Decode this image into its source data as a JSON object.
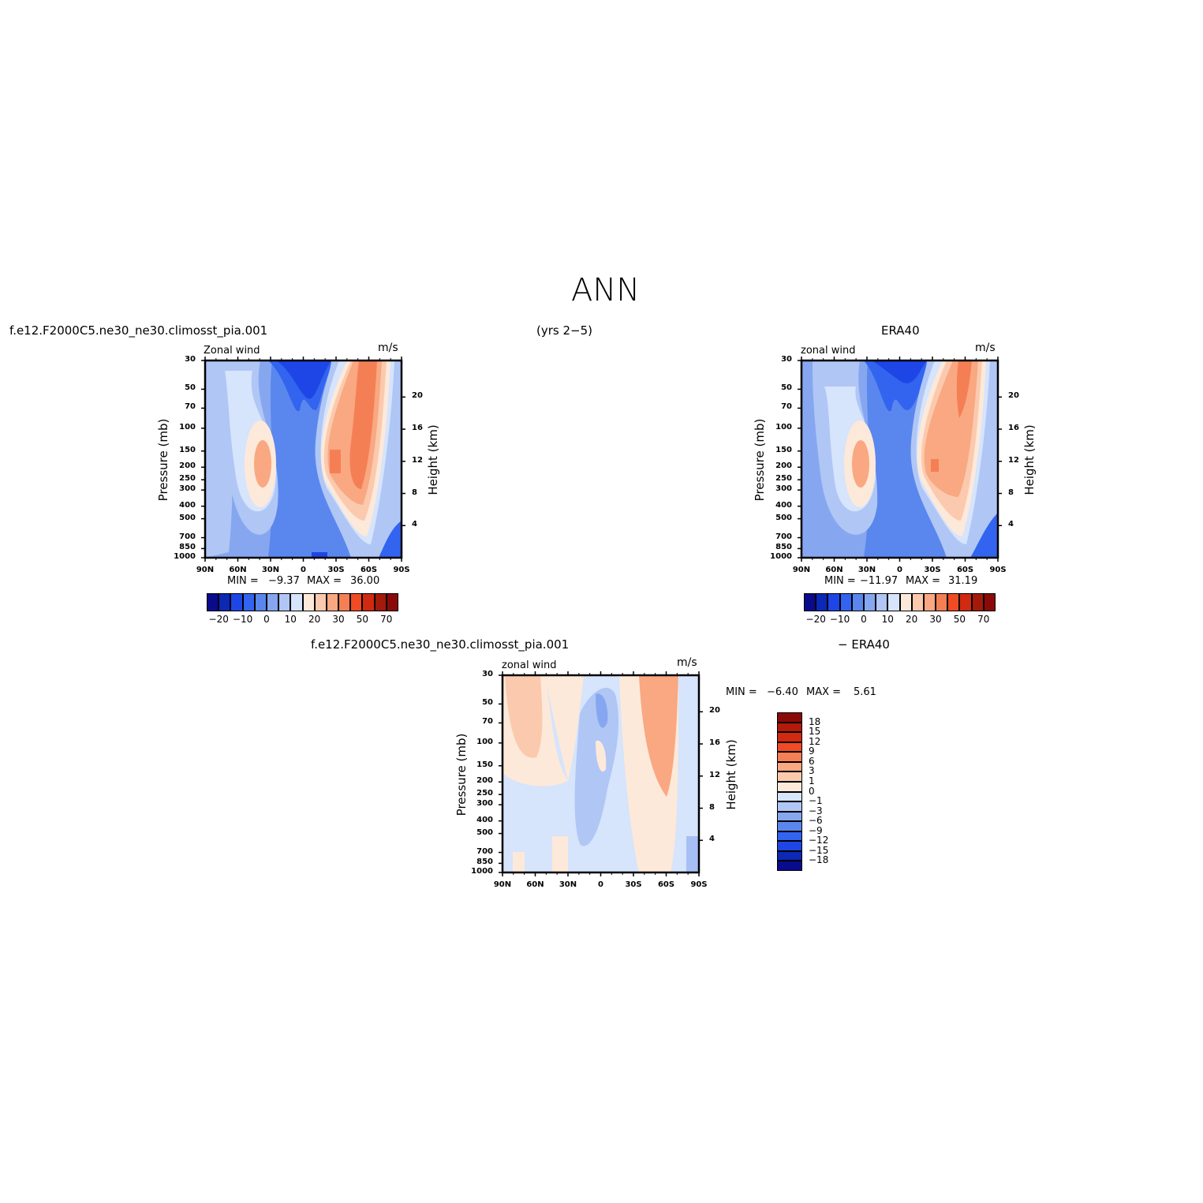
{
  "figure": {
    "title": "ANN",
    "case_name": "f.e12.F2000C5.ne30_ne30.climosst_pia.001",
    "years": "(yrs 2−5)",
    "obs_name": "ERA40",
    "diff_case_name": "f.e12.F2000C5.ne30_ne30.climosst_pia.001",
    "diff_obs_name": "− ERA40"
  },
  "colors": {
    "full_palette": [
      "#0a0a8c",
      "#0c28b4",
      "#1e46e6",
      "#3264f0",
      "#5a87ee",
      "#86a7f0",
      "#b0c6f5",
      "#d6e4fc",
      "#fde9d9",
      "#fbcaae",
      "#f9a882",
      "#f57f55",
      "#f04b24",
      "#d02a10",
      "#a31a0a",
      "#8a0a0a"
    ],
    "diff_palette": [
      "#8a0a0a",
      "#b41a0a",
      "#d02a10",
      "#f04b24",
      "#f57f55",
      "#f9a882",
      "#fbcaae",
      "#fde9d9",
      "#d6e4fc",
      "#b0c6f5",
      "#86a7f0",
      "#5a87ee",
      "#3264f0",
      "#1e46e6",
      "#0c28b4",
      "#0a0a8c"
    ]
  },
  "chart_data": [
    {
      "type": "heatmap",
      "panel": "model",
      "title": "Zonal wind",
      "units": "m/s",
      "ylabel_left": "Pressure (mb)",
      "ylabel_right": "Height (km)",
      "x_ticks": [
        "90N",
        "60N",
        "30N",
        "0",
        "30S",
        "60S",
        "90S"
      ],
      "y_ticks_pressure": [
        "30",
        "50",
        "70",
        "100",
        "150",
        "200",
        "250",
        "300",
        "400",
        "500",
        "700",
        "850",
        "1000"
      ],
      "y_ticks_height": [
        "20",
        "16",
        "12",
        "8",
        "4"
      ],
      "ylim_pressure": [
        1000,
        30
      ],
      "min_label": "MIN =",
      "min_value": "−9.37",
      "max_label": "MAX =",
      "max_value": "36.00",
      "colorbar_labels": [
        "−20",
        "−10",
        "0",
        "10",
        "20",
        "30",
        "50",
        "70"
      ]
    },
    {
      "type": "heatmap",
      "panel": "obs",
      "title": "zonal wind",
      "units": "m/s",
      "ylabel_left": "Pressure (mb)",
      "ylabel_right": "Height (km)",
      "x_ticks": [
        "90N",
        "60N",
        "30N",
        "0",
        "30S",
        "60S",
        "90S"
      ],
      "y_ticks_pressure": [
        "30",
        "50",
        "70",
        "100",
        "150",
        "200",
        "250",
        "300",
        "400",
        "500",
        "700",
        "850",
        "1000"
      ],
      "y_ticks_height": [
        "20",
        "16",
        "12",
        "8",
        "4"
      ],
      "ylim_pressure": [
        1000,
        30
      ],
      "min_label": "MIN =",
      "min_value": "−11.97",
      "max_label": "MAX =",
      "max_value": "31.19",
      "colorbar_labels": [
        "−20",
        "−10",
        "0",
        "10",
        "20",
        "30",
        "50",
        "70"
      ]
    },
    {
      "type": "heatmap",
      "panel": "difference",
      "title": "zonal wind",
      "units": "m/s",
      "ylabel_left": "Pressure (mb)",
      "ylabel_right": "Height (km)",
      "x_ticks": [
        "90N",
        "60N",
        "30N",
        "0",
        "30S",
        "60S",
        "90S"
      ],
      "y_ticks_pressure": [
        "30",
        "50",
        "70",
        "100",
        "150",
        "200",
        "250",
        "300",
        "400",
        "500",
        "700",
        "850",
        "1000"
      ],
      "y_ticks_height": [
        "20",
        "16",
        "12",
        "8",
        "4"
      ],
      "ylim_pressure": [
        1000,
        30
      ],
      "min_label": "MIN =",
      "min_value": "−6.40",
      "max_label": "MAX =",
      "max_value": "5.61",
      "colorbar_labels": [
        "18",
        "15",
        "12",
        "9",
        "6",
        "3",
        "1",
        "0",
        "−1",
        "−3",
        "−6",
        "−9",
        "−12",
        "−15",
        "−18"
      ]
    }
  ]
}
